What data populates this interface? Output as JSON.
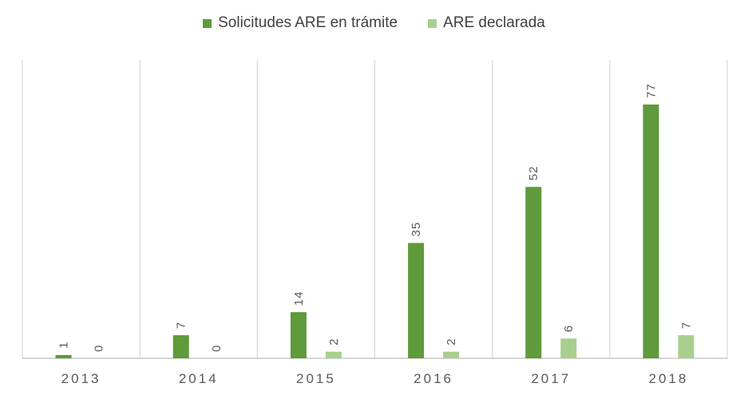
{
  "chart_data": {
    "type": "bar",
    "title": "",
    "xlabel": "",
    "ylabel": "",
    "categories": [
      "2013",
      "2014",
      "2015",
      "2016",
      "2017",
      "2018"
    ],
    "series": [
      {
        "name": "Solicitudes ARE en trámite",
        "color": "#5f9a3b",
        "values": [
          1,
          7,
          14,
          35,
          52,
          77
        ]
      },
      {
        "name": "ARE declarada",
        "color": "#a9cf8e",
        "values": [
          0,
          0,
          2,
          2,
          6,
          7
        ]
      }
    ],
    "ylim": [
      0,
      80
    ],
    "grid": false,
    "legend_position": "top-center",
    "data_labels": true
  }
}
